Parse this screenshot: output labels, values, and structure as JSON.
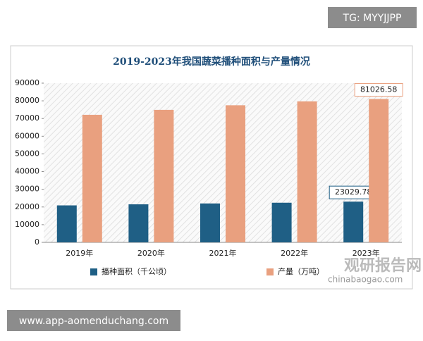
{
  "chart_data": {
    "type": "bar",
    "title": "2019-2023年我国蔬菜播种面积与产量情况",
    "categories": [
      "2019年",
      "2020年",
      "2021年",
      "2022年",
      "2023年"
    ],
    "series": [
      {
        "name": "播种面积（千公顷）",
        "color": "#1f5f85",
        "values": [
          20900,
          21500,
          22000,
          22400,
          23029.78
        ],
        "value_labels": [
          null,
          null,
          null,
          null,
          "23029.78"
        ]
      },
      {
        "name": "产量（万吨）",
        "color": "#e9a07f",
        "values": [
          72100,
          74900,
          77500,
          79700,
          81026.58
        ],
        "value_labels": [
          null,
          null,
          null,
          null,
          "81026.58"
        ]
      }
    ],
    "ylim": [
      0,
      90000
    ],
    "yticks": [
      0,
      10000,
      20000,
      30000,
      40000,
      50000,
      60000,
      70000,
      80000,
      90000
    ],
    "legend": "bottom"
  },
  "overlays": {
    "top_tag": "TG: MYYJJPP",
    "bottom_url": "www.app-aomenduchang.com",
    "brand": "观研报告网",
    "brand_url": "chinabaogao.com"
  }
}
